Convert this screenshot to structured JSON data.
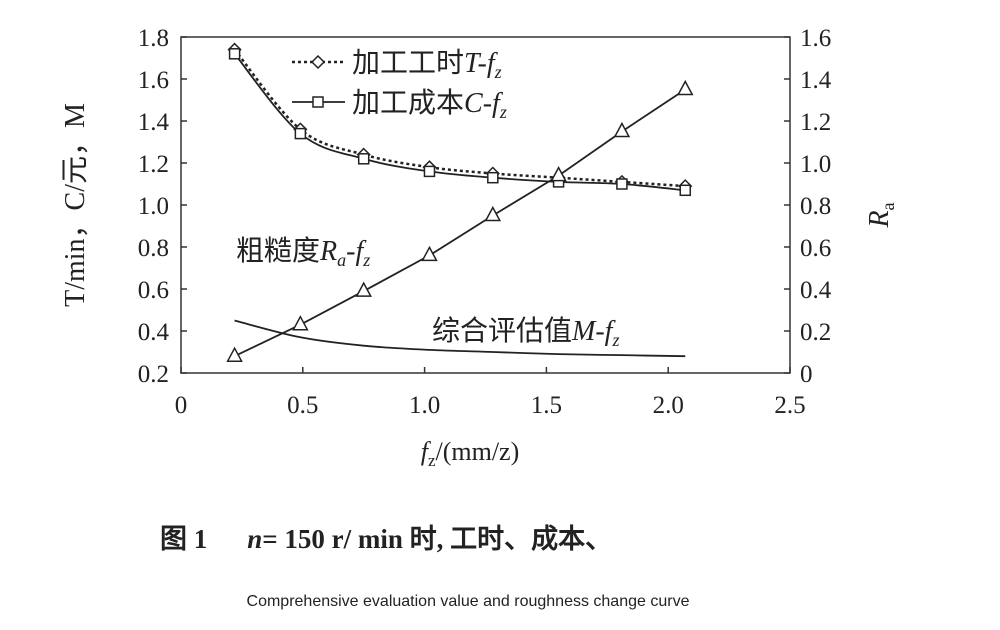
{
  "chart_data": {
    "type": "line",
    "x": [
      0.22,
      0.49,
      0.75,
      1.02,
      1.28,
      1.55,
      1.81,
      2.07
    ],
    "xlim": [
      0,
      2.5
    ],
    "xticks": [
      "0",
      "0.5",
      "1.0",
      "1.5",
      "2.0",
      "2.5"
    ],
    "xlabel": {
      "var": "f",
      "sub": "z",
      "rest": "/(mm/z)"
    },
    "ylim_left": [
      0.2,
      1.8
    ],
    "yticks_left": [
      "0.2",
      "0.4",
      "0.6",
      "0.8",
      "1.0",
      "1.2",
      "1.4",
      "1.6",
      "1.8"
    ],
    "ylabel_left": "T/min，C/元，M",
    "ylim_right": [
      0,
      1.6
    ],
    "yticks_right": [
      "0",
      "0.2",
      "0.4",
      "0.6",
      "0.8",
      "1.0",
      "1.2",
      "1.4",
      "1.6"
    ],
    "ylabel_right": {
      "var": "R",
      "sub": "a"
    },
    "grid": false,
    "series": [
      {
        "name": "加工工时T-fz",
        "label_parts": [
          "加工工时",
          "T",
          "-f",
          "z"
        ],
        "axis": "left",
        "marker": "diamond",
        "dash": "dotted",
        "values": [
          1.74,
          1.36,
          1.24,
          1.18,
          1.15,
          1.13,
          1.11,
          1.09
        ]
      },
      {
        "name": "加工成本C-fz",
        "label_parts": [
          "加工成本",
          "C",
          "-f",
          "z"
        ],
        "axis": "left",
        "marker": "square",
        "dash": "solid",
        "values": [
          1.72,
          1.34,
          1.22,
          1.16,
          1.13,
          1.11,
          1.1,
          1.07
        ]
      },
      {
        "name": "粗糙度Ra-fz",
        "label_parts": [
          "粗糙度",
          "R",
          "a",
          "-f",
          "z"
        ],
        "axis": "right",
        "marker": "triangle",
        "dash": "solid",
        "values": [
          0.08,
          0.23,
          0.39,
          0.56,
          0.75,
          0.94,
          1.15,
          1.35
        ]
      },
      {
        "name": "综合评估值M-fz",
        "label_parts": [
          "综合评估值",
          "M",
          "-f",
          "z"
        ],
        "axis": "left",
        "marker": "none",
        "dash": "solid",
        "values": [
          0.45,
          0.37,
          0.33,
          0.31,
          0.3,
          0.29,
          0.285,
          0.28
        ]
      }
    ],
    "legend": "top-left"
  },
  "caption": {
    "line1": "图 1　 n= 150 r/ min 时, 工时、成本、",
    "fig": "图 1",
    "n": "n",
    "rest": "= 150 r/ min 时, 工时、成本、",
    "line2": "Comprehensive evaluation value and roughness change curve"
  }
}
